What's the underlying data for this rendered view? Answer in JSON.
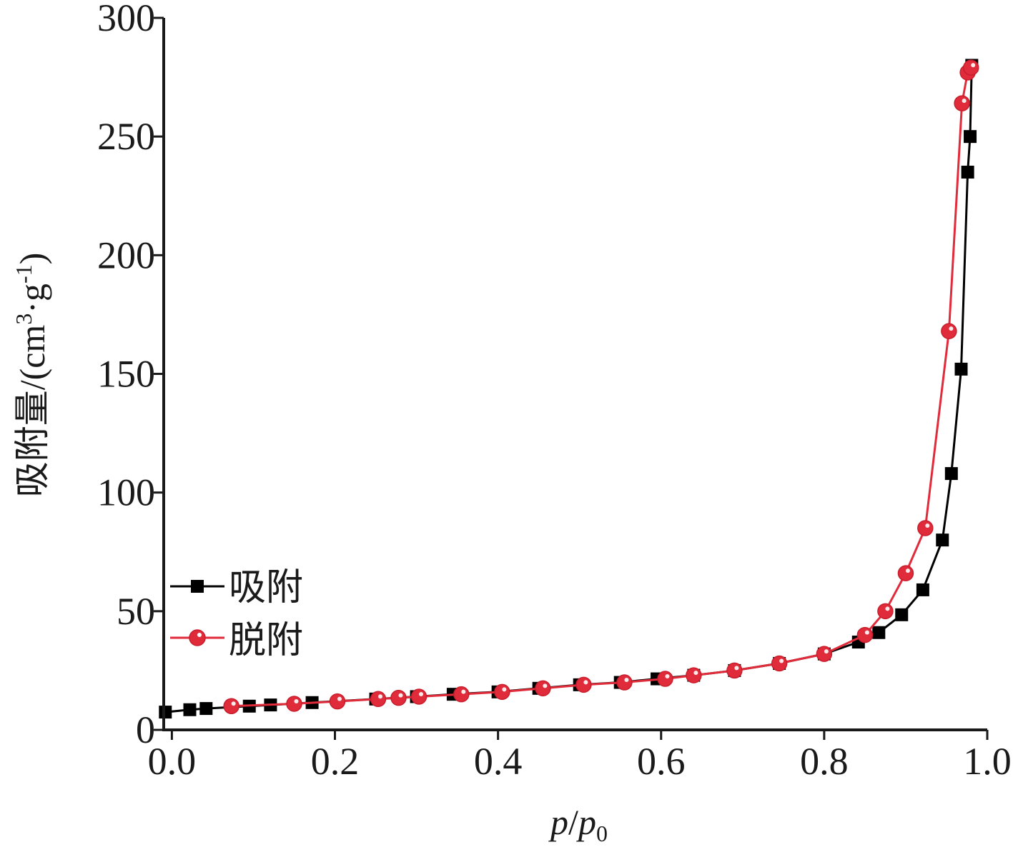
{
  "chart_data": {
    "type": "line",
    "xlabel": {
      "italic1": "p",
      "slash": "/",
      "italic2": "p",
      "subscript": "0"
    },
    "ylabel": {
      "prefix": "吸附量/(cm",
      "sup1": "3",
      "middle": "·g",
      "sup2": "-1",
      "suffix": ")"
    },
    "xlim": [
      -0.01,
      1.0
    ],
    "ylim": [
      0,
      300
    ],
    "xticks": [
      0.0,
      0.2,
      0.4,
      0.6,
      0.8,
      1.0
    ],
    "xtick_labels": [
      "0.0",
      "0.2",
      "0.4",
      "0.6",
      "0.8",
      "1.0"
    ],
    "yticks": [
      0,
      50,
      100,
      150,
      200,
      250,
      300
    ],
    "ytick_labels": [
      "0",
      "50",
      "100",
      "150",
      "200",
      "250",
      "300"
    ],
    "grid": false,
    "legend_position": "bottom-left",
    "series": [
      {
        "name": "吸附",
        "color": "#000000",
        "marker": "square",
        "x": [
          -0.008,
          0.022,
          0.042,
          0.095,
          0.121,
          0.172,
          0.25,
          0.3,
          0.345,
          0.4,
          0.45,
          0.5,
          0.55,
          0.595,
          0.64,
          0.69,
          0.745,
          0.8,
          0.842,
          0.867,
          0.895,
          0.921,
          0.945,
          0.956,
          0.968,
          0.976,
          0.979,
          0.981
        ],
        "y": [
          7.5,
          8.5,
          9,
          10,
          10.5,
          11.5,
          13,
          14,
          15,
          16,
          17.5,
          19,
          20,
          21.5,
          23,
          25,
          28,
          32,
          37,
          41,
          48.5,
          59,
          80,
          108,
          152,
          235,
          250,
          280
        ]
      },
      {
        "name": "脱附",
        "color": "#e02b3b",
        "marker": "circle",
        "x": [
          0.073,
          0.15,
          0.203,
          0.253,
          0.278,
          0.303,
          0.355,
          0.405,
          0.455,
          0.505,
          0.555,
          0.605,
          0.64,
          0.69,
          0.745,
          0.8,
          0.85,
          0.875,
          0.9,
          0.924,
          0.953,
          0.969,
          0.976,
          0.98
        ],
        "y": [
          10,
          11,
          12,
          13,
          13.5,
          14,
          15,
          16,
          17.5,
          19,
          20,
          21.5,
          23,
          25,
          28,
          32,
          40,
          50,
          66,
          85,
          168,
          264,
          277,
          279
        ]
      }
    ]
  }
}
